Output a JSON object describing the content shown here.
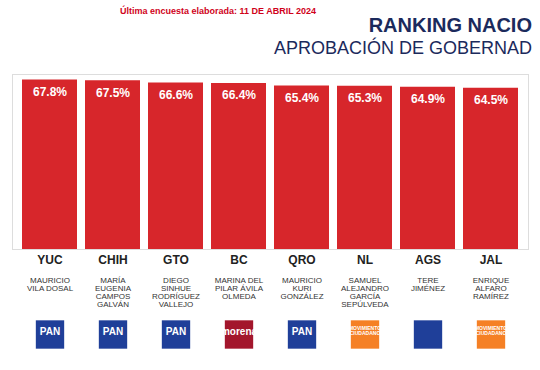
{
  "chart_data": {
    "type": "bar",
    "title": "RANKING NACIO",
    "subtitle": "APROBACIÓN DE GOBERNAD",
    "caption": "Última encuesta elaborada:  11 DE ABRIL 2024",
    "categories": [
      "YUC",
      "CHIH",
      "GTO",
      "BC",
      "QRO",
      "NL",
      "AGS",
      "JAL"
    ],
    "values": [
      67.8,
      67.5,
      66.6,
      66.4,
      65.4,
      65.3,
      64.9,
      64.5
    ],
    "value_labels": [
      "67.8%",
      "67.5%",
      "66.6%",
      "66.4%",
      "65.4%",
      "65.3%",
      "64.9%",
      "64.5%"
    ],
    "governors": [
      "MAURICIO VILA DOSAL",
      "MARÍA EUGENIA CAMPOS GALVÁN",
      "DIEGO SINHUE RODRÍGUEZ VALLEJO",
      "MARINA DEL PILAR ÁVILA OLMEDA",
      "MAURICIO KURI GONZÁLEZ",
      "SAMUEL ALEJANDRO GARCÍA SEPÚLVEDA",
      "TERE JIMÉNEZ",
      "ENRIQUE ALFARO RAMÍREZ"
    ],
    "parties": [
      "PAN",
      "PAN",
      "PAN",
      "morena",
      "PAN",
      "MOVIMIENTO CIUDADANO",
      null,
      "MOVIMIENTO CIUDADANO"
    ],
    "color": "#d7262b",
    "ylim": [
      0,
      70
    ],
    "yticks": [],
    "tick_labels": "x",
    "data_labels": true,
    "grid": false
  }
}
